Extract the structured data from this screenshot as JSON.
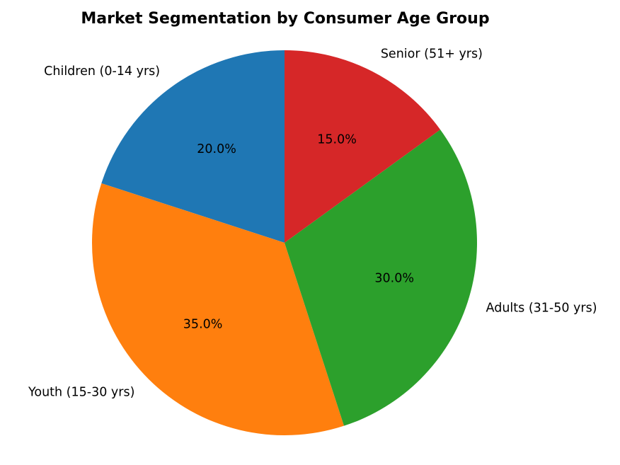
{
  "chart_data": {
    "type": "pie",
    "title": "Market Segmentation by Consumer Age Group",
    "start_angle_deg": 90,
    "direction": "counterclockwise",
    "slices": [
      {
        "label": "Children (0-14 yrs)",
        "value": 20.0,
        "pct_label": "20.0%",
        "color": "#1f77b4"
      },
      {
        "label": "Youth (15-30 yrs)",
        "value": 35.0,
        "pct_label": "35.0%",
        "color": "#ff7f0e"
      },
      {
        "label": "Adults (31-50 yrs)",
        "value": 30.0,
        "pct_label": "30.0%",
        "color": "#2ca02c"
      },
      {
        "label": "Senior (51+ yrs)",
        "value": 15.0,
        "pct_label": "15.0%",
        "color": "#d62728"
      }
    ],
    "legend": "none"
  }
}
